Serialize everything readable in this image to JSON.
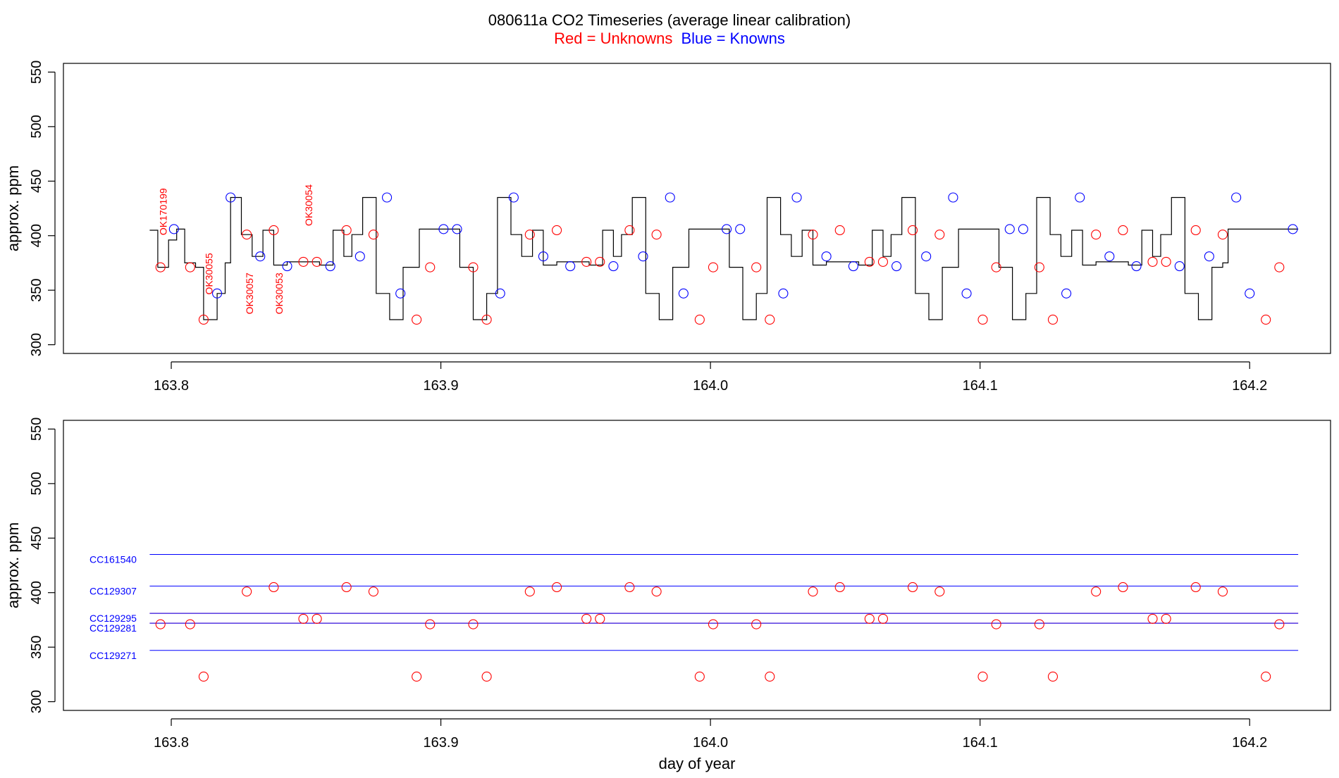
{
  "title": {
    "main": "080611a    CO2 Timeseries (average linear calibration)",
    "legend_red": "Red = Unknowns",
    "legend_blue": "Blue = Knowns"
  },
  "colors": {
    "unknown": "#ff0000",
    "known": "#0000ff",
    "trace": "#000000",
    "reference_line": "#0000ff"
  },
  "chart_data": [
    {
      "type": "line",
      "panel": "top",
      "ylabel": "approx. ppm",
      "xlabel": "",
      "xlim": [
        163.76,
        164.23
      ],
      "ylim": [
        292,
        558
      ],
      "x_ticks": [
        163.8,
        163.9,
        164.0,
        164.1,
        164.2
      ],
      "x_tick_labels": [
        "163.8",
        "163.9",
        "164.0",
        "164.1",
        "164.2"
      ],
      "y_ticks": [
        300,
        350,
        400,
        450,
        500,
        550
      ],
      "y_tick_labels": [
        "300",
        "350",
        "400",
        "450",
        "500",
        "550"
      ],
      "trace_levels": [
        [
          163.792,
          405
        ],
        [
          163.795,
          371
        ],
        [
          163.799,
          396
        ],
        [
          163.802,
          406
        ],
        [
          163.805,
          375
        ],
        [
          163.809,
          371
        ],
        [
          163.812,
          323
        ],
        [
          163.817,
          347
        ],
        [
          163.82,
          375
        ],
        [
          163.822,
          435
        ],
        [
          163.826,
          401
        ],
        [
          163.83,
          381
        ],
        [
          163.834,
          405
        ],
        [
          163.838,
          373
        ],
        [
          163.843,
          376
        ],
        [
          163.852,
          376
        ],
        [
          163.855,
          373
        ],
        [
          163.86,
          405
        ],
        [
          163.864,
          381
        ],
        [
          163.867,
          401
        ],
        [
          163.871,
          435
        ],
        [
          163.876,
          347
        ],
        [
          163.881,
          323
        ],
        [
          163.886,
          371
        ],
        [
          163.892,
          406
        ],
        [
          163.907,
          371
        ],
        [
          163.912,
          323
        ],
        [
          163.917,
          347
        ],
        [
          163.921,
          435
        ],
        [
          163.926,
          401
        ],
        [
          163.93,
          381
        ],
        [
          163.934,
          405
        ],
        [
          163.938,
          373
        ],
        [
          163.943,
          376
        ],
        [
          163.952,
          376
        ],
        [
          163.955,
          373
        ],
        [
          163.96,
          405
        ],
        [
          163.964,
          381
        ],
        [
          163.967,
          401
        ],
        [
          163.971,
          435
        ],
        [
          163.976,
          347
        ],
        [
          163.981,
          323
        ],
        [
          163.986,
          371
        ],
        [
          163.992,
          406
        ],
        [
          164.007,
          371
        ],
        [
          164.012,
          323
        ],
        [
          164.017,
          347
        ],
        [
          164.021,
          435
        ],
        [
          164.026,
          401
        ],
        [
          164.03,
          381
        ],
        [
          164.034,
          405
        ],
        [
          164.038,
          373
        ],
        [
          164.043,
          376
        ],
        [
          164.052,
          376
        ],
        [
          164.055,
          373
        ],
        [
          164.06,
          405
        ],
        [
          164.064,
          381
        ],
        [
          164.067,
          401
        ],
        [
          164.071,
          435
        ],
        [
          164.076,
          347
        ],
        [
          164.081,
          323
        ],
        [
          164.086,
          371
        ],
        [
          164.092,
          406
        ],
        [
          164.107,
          371
        ],
        [
          164.112,
          323
        ],
        [
          164.117,
          347
        ],
        [
          164.121,
          435
        ],
        [
          164.126,
          401
        ],
        [
          164.13,
          381
        ],
        [
          164.134,
          405
        ],
        [
          164.138,
          373
        ],
        [
          164.143,
          376
        ],
        [
          164.152,
          376
        ],
        [
          164.155,
          373
        ],
        [
          164.16,
          405
        ],
        [
          164.164,
          381
        ],
        [
          164.167,
          401
        ],
        [
          164.171,
          435
        ],
        [
          164.176,
          347
        ],
        [
          164.181,
          323
        ],
        [
          164.186,
          371
        ],
        [
          164.19,
          375
        ],
        [
          164.192,
          406
        ],
        [
          164.218,
          406
        ]
      ],
      "series": [
        {
          "name": "Unknowns",
          "color": "#ff0000",
          "points": [
            [
              163.796,
              371
            ],
            [
              163.807,
              371
            ],
            [
              163.812,
              323
            ],
            [
              163.828,
              401
            ],
            [
              163.838,
              405
            ],
            [
              163.849,
              376
            ],
            [
              163.854,
              376
            ],
            [
              163.865,
              405
            ],
            [
              163.875,
              401
            ],
            [
              163.891,
              323
            ],
            [
              163.896,
              371
            ],
            [
              163.912,
              371
            ],
            [
              163.917,
              323
            ],
            [
              163.933,
              401
            ],
            [
              163.943,
              405
            ],
            [
              163.954,
              376
            ],
            [
              163.959,
              376
            ],
            [
              163.97,
              405
            ],
            [
              163.98,
              401
            ],
            [
              163.996,
              323
            ],
            [
              164.001,
              371
            ],
            [
              164.017,
              371
            ],
            [
              164.022,
              323
            ],
            [
              164.038,
              401
            ],
            [
              164.048,
              405
            ],
            [
              164.059,
              376
            ],
            [
              164.064,
              376
            ],
            [
              164.075,
              405
            ],
            [
              164.085,
              401
            ],
            [
              164.101,
              323
            ],
            [
              164.106,
              371
            ],
            [
              164.122,
              371
            ],
            [
              164.127,
              323
            ],
            [
              164.143,
              401
            ],
            [
              164.153,
              405
            ],
            [
              164.164,
              376
            ],
            [
              164.169,
              376
            ],
            [
              164.18,
              405
            ],
            [
              164.19,
              401
            ],
            [
              164.206,
              323
            ],
            [
              164.211,
              371
            ]
          ]
        },
        {
          "name": "Knowns",
          "color": "#0000ff",
          "points": [
            [
              163.801,
              406
            ],
            [
              163.817,
              347
            ],
            [
              163.822,
              435
            ],
            [
              163.833,
              381
            ],
            [
              163.843,
              372
            ],
            [
              163.859,
              372
            ],
            [
              163.87,
              381
            ],
            [
              163.88,
              435
            ],
            [
              163.885,
              347
            ],
            [
              163.901,
              406
            ],
            [
              163.906,
              406
            ],
            [
              163.922,
              347
            ],
            [
              163.927,
              435
            ],
            [
              163.938,
              381
            ],
            [
              163.948,
              372
            ],
            [
              163.964,
              372
            ],
            [
              163.975,
              381
            ],
            [
              163.985,
              435
            ],
            [
              163.99,
              347
            ],
            [
              164.006,
              406
            ],
            [
              164.011,
              406
            ],
            [
              164.027,
              347
            ],
            [
              164.032,
              435
            ],
            [
              164.043,
              381
            ],
            [
              164.053,
              372
            ],
            [
              164.069,
              372
            ],
            [
              164.08,
              381
            ],
            [
              164.09,
              435
            ],
            [
              164.095,
              347
            ],
            [
              164.111,
              406
            ],
            [
              164.116,
              406
            ],
            [
              164.132,
              347
            ],
            [
              164.137,
              435
            ],
            [
              164.148,
              381
            ],
            [
              164.158,
              372
            ],
            [
              164.174,
              372
            ],
            [
              164.185,
              381
            ],
            [
              164.195,
              435
            ],
            [
              164.2,
              347
            ],
            [
              164.216,
              406
            ]
          ]
        }
      ],
      "annotations": [
        {
          "text": "OK170199",
          "x": 163.797,
          "y": 422
        },
        {
          "text": "OK30055",
          "x": 163.814,
          "y": 365
        },
        {
          "text": "OK30057",
          "x": 163.829,
          "y": 347
        },
        {
          "text": "OK30053",
          "x": 163.84,
          "y": 347
        },
        {
          "text": "OK30054",
          "x": 163.851,
          "y": 428
        }
      ]
    },
    {
      "type": "scatter",
      "panel": "bottom",
      "ylabel": "approx. ppm",
      "xlabel": "day of year",
      "xlim": [
        163.76,
        164.23
      ],
      "ylim": [
        292,
        558
      ],
      "x_ticks": [
        163.8,
        163.9,
        164.0,
        164.1,
        164.2
      ],
      "x_tick_labels": [
        "163.8",
        "163.9",
        "164.0",
        "164.1",
        "164.2"
      ],
      "y_ticks": [
        300,
        350,
        400,
        450,
        500,
        550
      ],
      "y_tick_labels": [
        "300",
        "350",
        "400",
        "450",
        "500",
        "550"
      ],
      "reference_lines": [
        {
          "name": "CC161540",
          "y": 435,
          "color": "#0000ff"
        },
        {
          "name": "CC129307",
          "y": 406,
          "color": "#0000ff"
        },
        {
          "name": "CC129295",
          "y": 381,
          "color": "#0000ff"
        },
        {
          "name": "CC129281",
          "y": 372,
          "color": "#0000ff"
        },
        {
          "name": "CC129271",
          "y": 347,
          "color": "#0000ff"
        }
      ],
      "unknown_reference_lines": [
        {
          "y": 381,
          "color": "#ff0000"
        },
        {
          "y": 372,
          "color": "#ff0000"
        }
      ],
      "line_x_range": [
        163.792,
        164.218
      ],
      "series": [
        {
          "name": "Unknowns",
          "color": "#ff0000",
          "points": [
            [
              163.796,
              371
            ],
            [
              163.807,
              371
            ],
            [
              163.812,
              323
            ],
            [
              163.828,
              401
            ],
            [
              163.838,
              405
            ],
            [
              163.849,
              376
            ],
            [
              163.854,
              376
            ],
            [
              163.865,
              405
            ],
            [
              163.875,
              401
            ],
            [
              163.891,
              323
            ],
            [
              163.896,
              371
            ],
            [
              163.912,
              371
            ],
            [
              163.917,
              323
            ],
            [
              163.933,
              401
            ],
            [
              163.943,
              405
            ],
            [
              163.954,
              376
            ],
            [
              163.959,
              376
            ],
            [
              163.97,
              405
            ],
            [
              163.98,
              401
            ],
            [
              163.996,
              323
            ],
            [
              164.001,
              371
            ],
            [
              164.017,
              371
            ],
            [
              164.022,
              323
            ],
            [
              164.038,
              401
            ],
            [
              164.048,
              405
            ],
            [
              164.059,
              376
            ],
            [
              164.064,
              376
            ],
            [
              164.075,
              405
            ],
            [
              164.085,
              401
            ],
            [
              164.101,
              323
            ],
            [
              164.106,
              371
            ],
            [
              164.122,
              371
            ],
            [
              164.127,
              323
            ],
            [
              164.143,
              401
            ],
            [
              164.153,
              405
            ],
            [
              164.164,
              376
            ],
            [
              164.169,
              376
            ],
            [
              164.18,
              405
            ],
            [
              164.19,
              401
            ],
            [
              164.206,
              323
            ],
            [
              164.211,
              371
            ]
          ]
        }
      ]
    }
  ]
}
